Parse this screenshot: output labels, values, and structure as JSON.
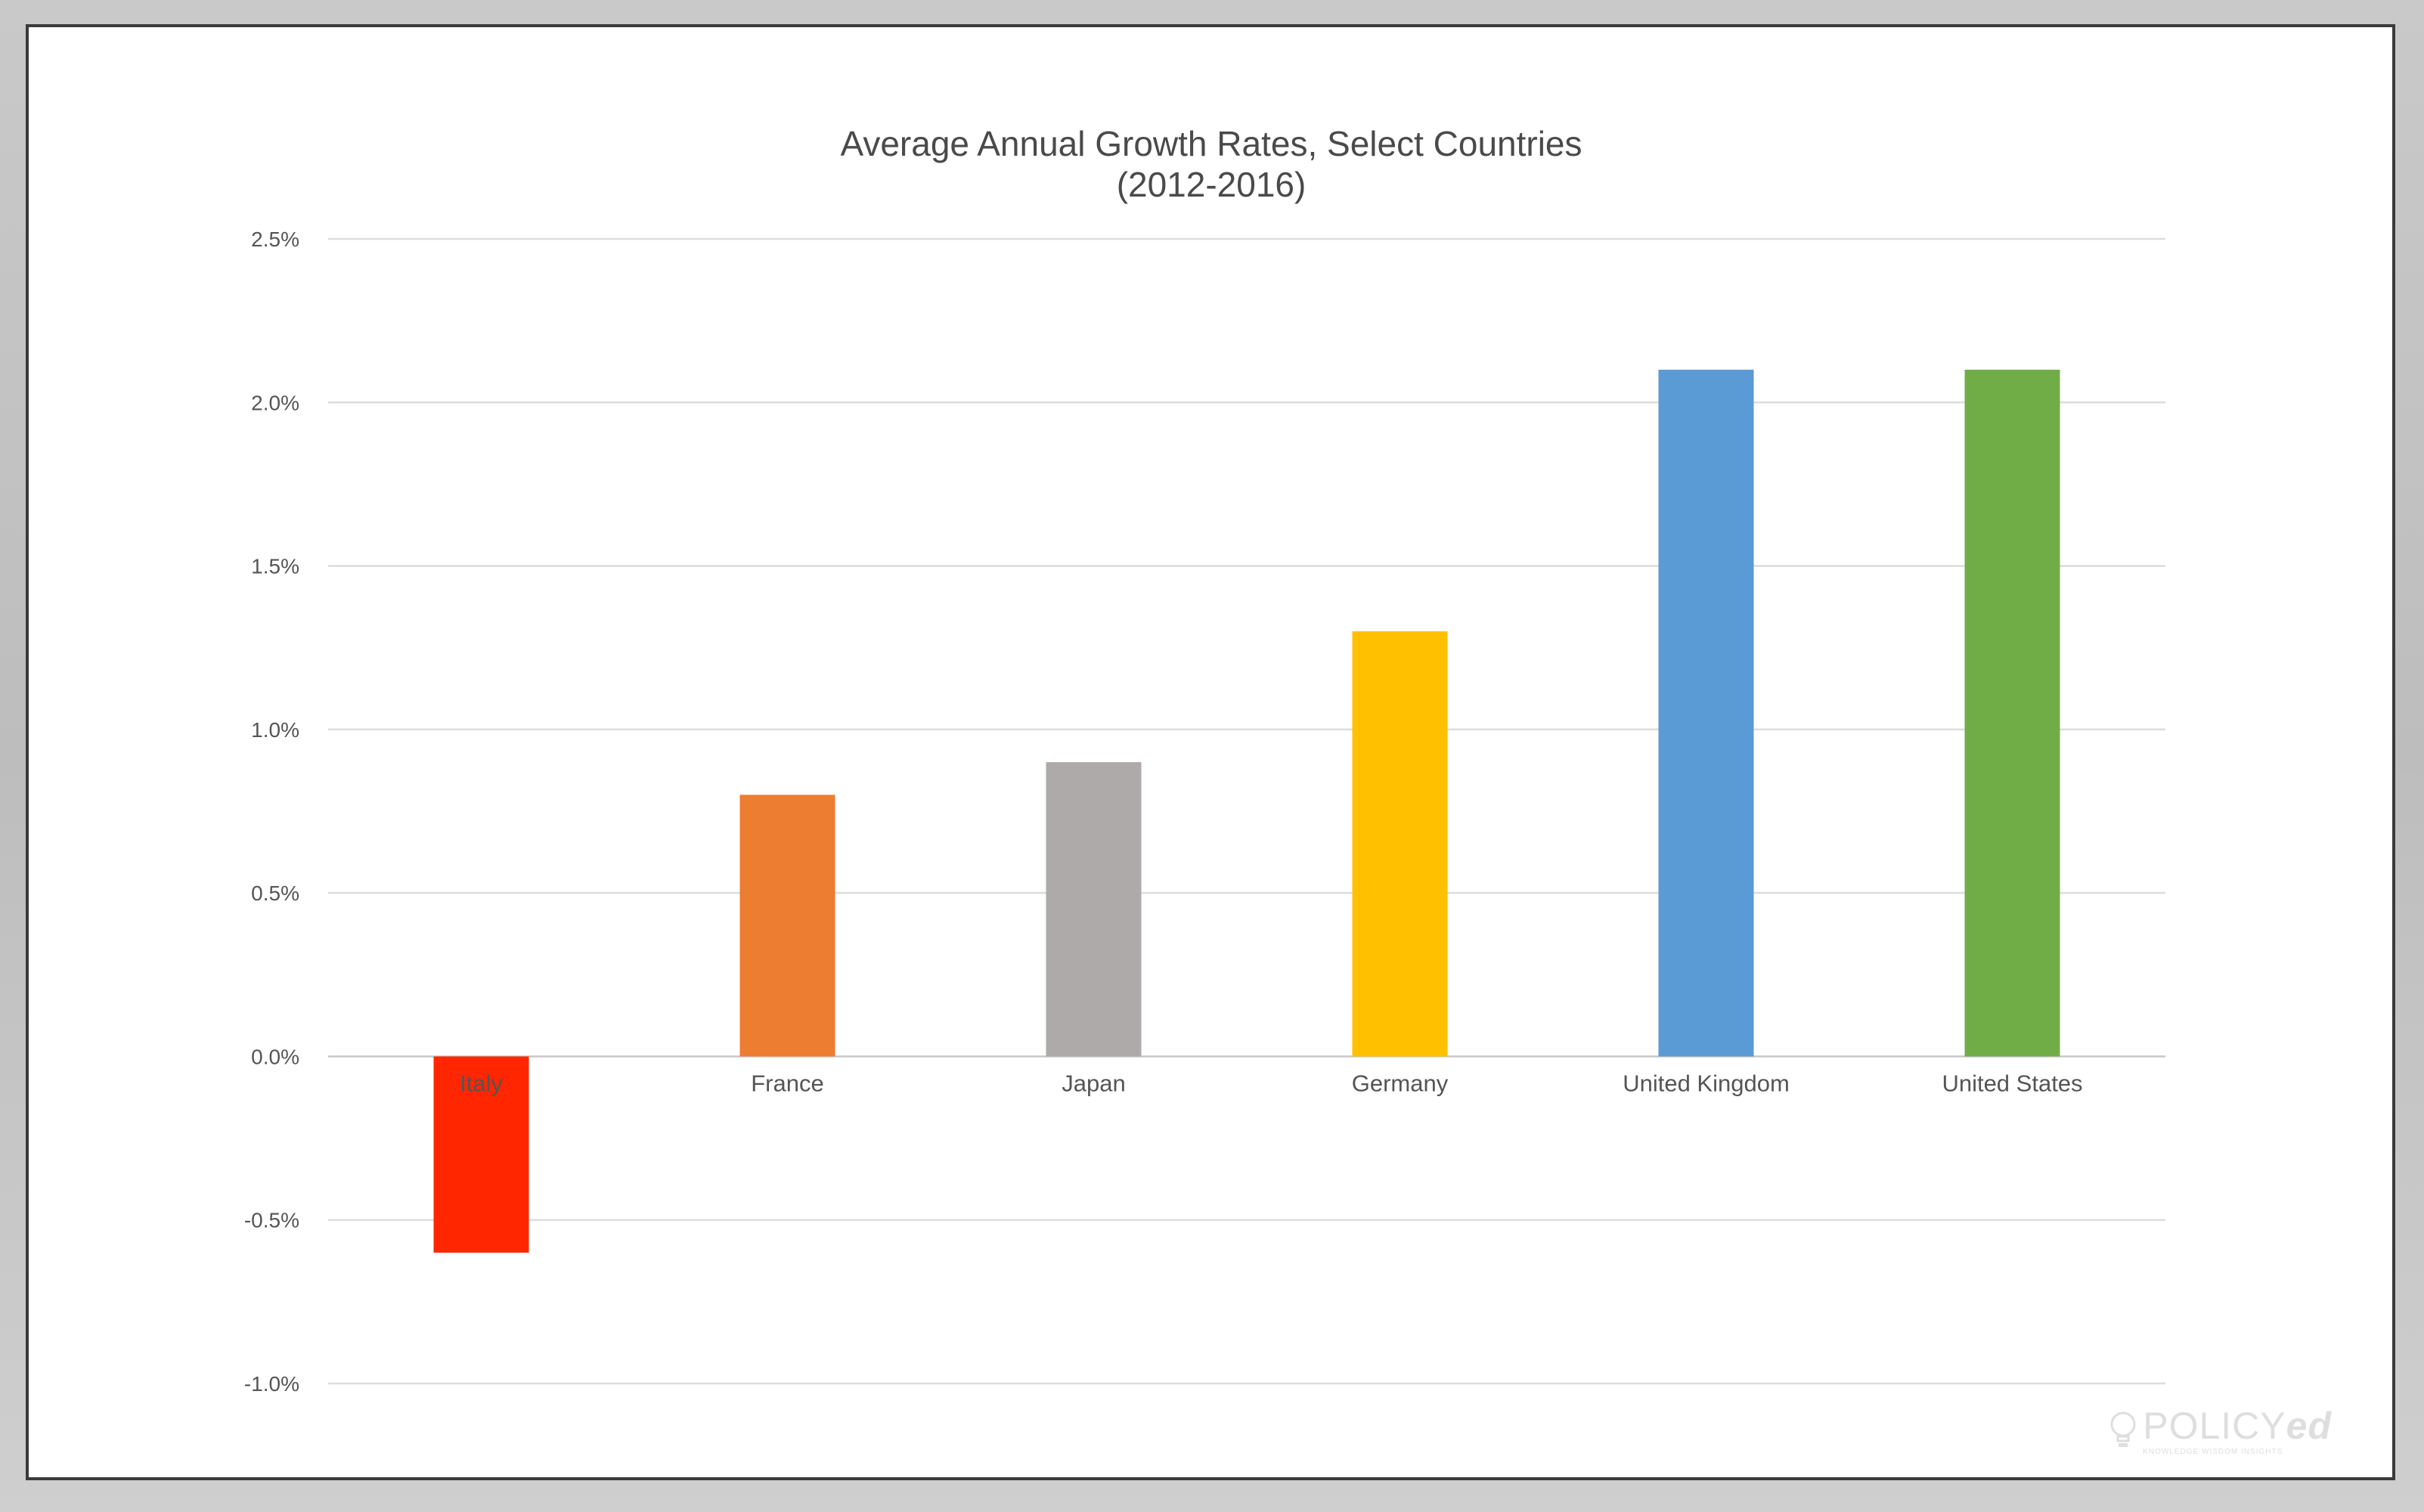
{
  "chart_data": {
    "type": "bar",
    "title": "Average Annual Growth Rates, Select Countries",
    "subtitle": "(2012-2016)",
    "xlabel": "",
    "ylabel": "",
    "categories": [
      "Italy",
      "France",
      "Japan",
      "Germany",
      "United Kingdom",
      "United States"
    ],
    "values": [
      -0.6,
      0.8,
      0.9,
      1.3,
      2.1,
      2.1
    ],
    "colors": [
      "#ff2600",
      "#ed7d31",
      "#aeaaa9",
      "#ffc000",
      "#5b9bd5",
      "#70ad47"
    ],
    "ylim": [
      -1.0,
      2.5
    ],
    "yticks": [
      2.5,
      2.0,
      1.5,
      1.0,
      0.5,
      0.0,
      -0.5,
      -1.0
    ],
    "ytick_labels": [
      "2.5%",
      "2.0%",
      "1.5%",
      "1.0%",
      "0.5%",
      "0.0%",
      "-0.5%",
      "-1.0%"
    ],
    "grid": true,
    "legend": "none"
  },
  "logo": {
    "main": "POLICY",
    "accent": "ed",
    "tagline": "KNOWLEDGE WISDOM INSIGHTS"
  }
}
